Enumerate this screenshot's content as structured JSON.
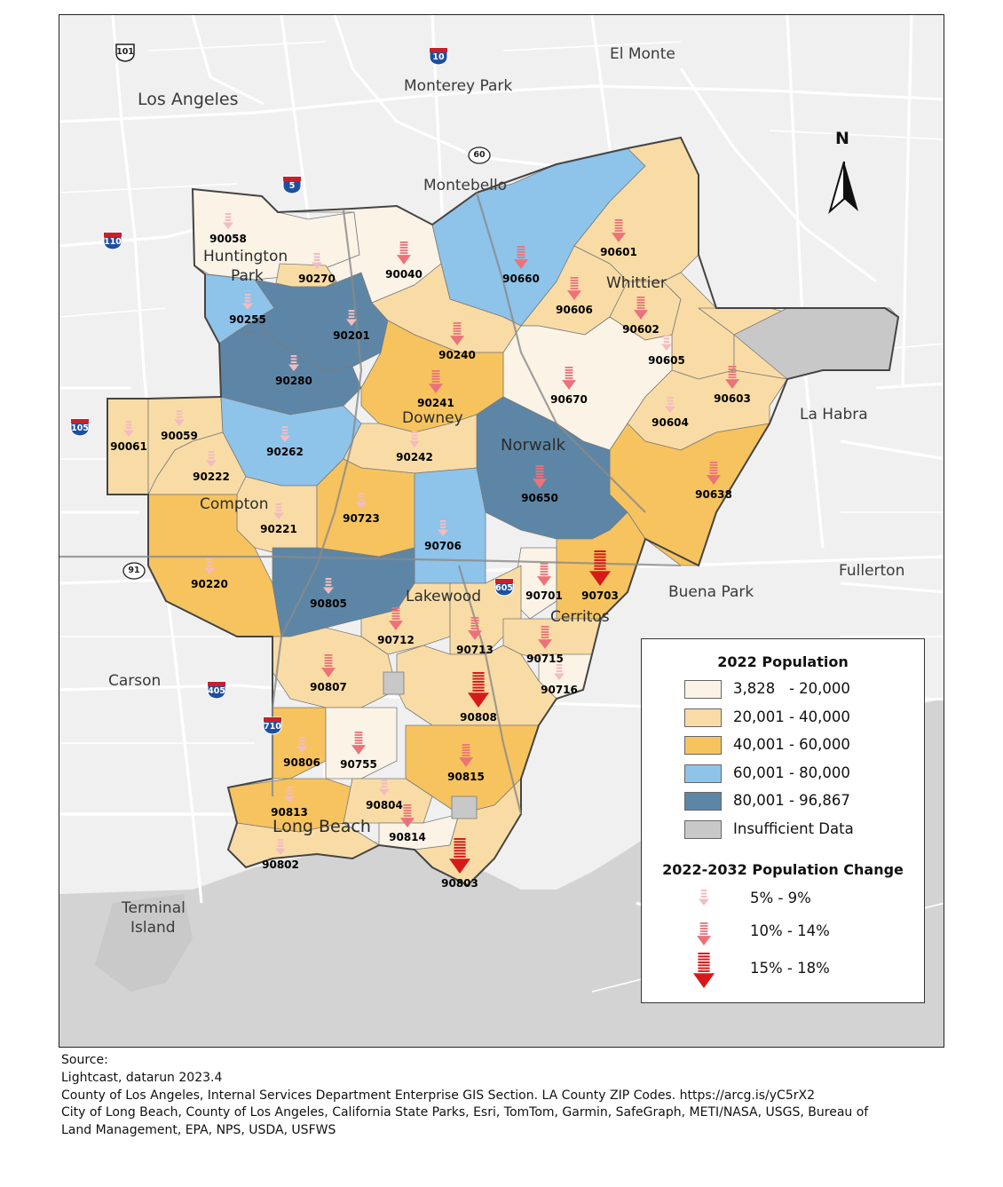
{
  "colors": {
    "pop_1": "#fbf3e6",
    "pop_2": "#f9dca5",
    "pop_3": "#f6c35f",
    "pop_4": "#8ec3ea",
    "pop_5": "#5d86a6",
    "insufficient": "#c8c8c8",
    "arrow_small": "#f3bcc0",
    "arrow_medium": "#ec727a",
    "arrow_large": "#d81919"
  },
  "cities": {
    "los_angeles": "Los Angeles",
    "el_monte": "El Monte",
    "monterey_park": "Monterey Park",
    "montebello": "Montebello",
    "huntington_park_1": "Huntington",
    "huntington_park_2": "Park",
    "whittier": "Whittier",
    "la_habra": "La Habra",
    "downey": "Downey",
    "norwalk": "Norwalk",
    "compton": "Compton",
    "fullerton": "Fullerton",
    "buena_park": "Buena Park",
    "lakewood": "Lakewood",
    "cerritos": "Cerritos",
    "carson": "Carson",
    "long_beach": "Long Beach",
    "terminal_island_1": "Terminal",
    "terminal_island_2": "Island"
  },
  "highways": {
    "us101": "101",
    "i10": "10",
    "ca60": "60",
    "i5": "5",
    "i110": "110",
    "i105": "105",
    "ca91": "91",
    "i605": "605",
    "i405": "405",
    "i710": "710"
  },
  "zips": [
    {
      "code": "90058",
      "change": "small"
    },
    {
      "code": "90270",
      "change": "small"
    },
    {
      "code": "90040",
      "change": "medium"
    },
    {
      "code": "90660",
      "change": "medium"
    },
    {
      "code": "90601",
      "change": "medium"
    },
    {
      "code": "90606",
      "change": "medium"
    },
    {
      "code": "90602",
      "change": "medium"
    },
    {
      "code": "90255",
      "change": "small"
    },
    {
      "code": "90201",
      "change": "small"
    },
    {
      "code": "90240",
      "change": "medium"
    },
    {
      "code": "90605",
      "change": "small"
    },
    {
      "code": "90280",
      "change": "small"
    },
    {
      "code": "90241",
      "change": "medium"
    },
    {
      "code": "90670",
      "change": "medium"
    },
    {
      "code": "90603",
      "change": "medium"
    },
    {
      "code": "90604",
      "change": "small"
    },
    {
      "code": "90061",
      "change": "small"
    },
    {
      "code": "90059",
      "change": "small"
    },
    {
      "code": "90262",
      "change": "small"
    },
    {
      "code": "90242",
      "change": "small"
    },
    {
      "code": "90222",
      "change": "small"
    },
    {
      "code": "90638",
      "change": "medium"
    },
    {
      "code": "90650",
      "change": "medium"
    },
    {
      "code": "90221",
      "change": "small"
    },
    {
      "code": "90723",
      "change": "small"
    },
    {
      "code": "90220",
      "change": "small"
    },
    {
      "code": "90706",
      "change": "small"
    },
    {
      "code": "90805",
      "change": "small"
    },
    {
      "code": "90701",
      "change": "medium"
    },
    {
      "code": "90703",
      "change": "large"
    },
    {
      "code": "90712",
      "change": "medium"
    },
    {
      "code": "90713",
      "change": "medium"
    },
    {
      "code": "90715",
      "change": "medium"
    },
    {
      "code": "90807",
      "change": "medium"
    },
    {
      "code": "90716",
      "change": "small"
    },
    {
      "code": "90808",
      "change": "large"
    },
    {
      "code": "90806",
      "change": "small"
    },
    {
      "code": "90755",
      "change": "medium"
    },
    {
      "code": "90815",
      "change": "medium"
    },
    {
      "code": "90813",
      "change": "small"
    },
    {
      "code": "90804",
      "change": "small"
    },
    {
      "code": "90814",
      "change": "medium"
    },
    {
      "code": "90802",
      "change": "small"
    },
    {
      "code": "90803",
      "change": "large"
    }
  ],
  "legend": {
    "population_title": "2022 Population",
    "population_items": [
      {
        "label": "3,828   - 20,000",
        "color": "#fbf3e6"
      },
      {
        "label": "20,001 - 40,000",
        "color": "#f9dca5"
      },
      {
        "label": "40,001 - 60,000",
        "color": "#f6c35f"
      },
      {
        "label": "60,001 - 80,000",
        "color": "#8ec3ea"
      },
      {
        "label": "80,001 - 96,867",
        "color": "#5d86a6"
      },
      {
        "label": "Insufficient Data",
        "color": "#c8c8c8"
      }
    ],
    "change_title": "2022-2032 Population Change",
    "change_items": [
      {
        "label": "5% - 9%",
        "size": "small"
      },
      {
        "label": "10% - 14%",
        "size": "medium"
      },
      {
        "label": "15% - 18%",
        "size": "large"
      }
    ]
  },
  "north_arrow": "N",
  "source": {
    "heading": "Source:",
    "line1": "Lightcast, datarun 2023.4",
    "line2": "County of Los Angeles, Internal Services Department Enterprise GIS Section. LA County ZIP Codes. https://arcg.is/yC5rX2",
    "line3": "City of Long Beach, County of Los Angeles, California State Parks, Esri, TomTom, Garmin, SafeGraph, METI/NASA, USGS, Bureau of",
    "line4": "Land Management, EPA, NPS, USDA, USFWS"
  }
}
